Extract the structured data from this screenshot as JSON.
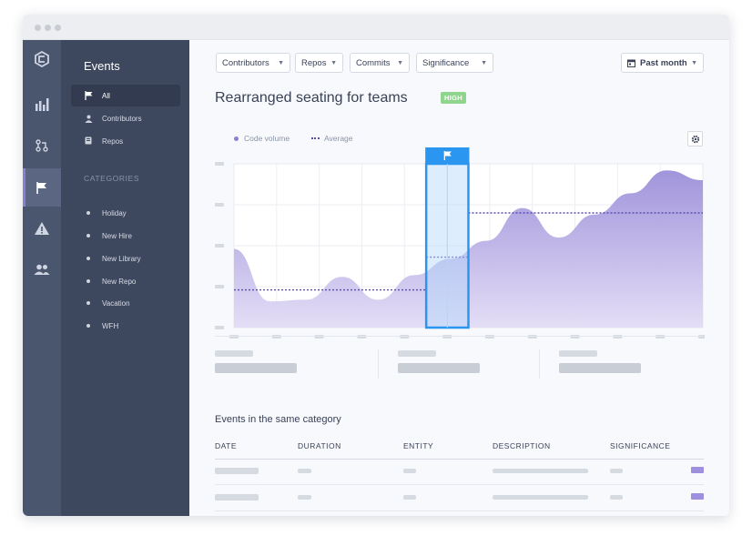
{
  "sidebar": {
    "title": "Events",
    "items": [
      {
        "label": "All",
        "icon": "flag-icon",
        "active": true
      },
      {
        "label": "Contributors",
        "icon": "user-icon"
      },
      {
        "label": "Repos",
        "icon": "repo-icon"
      }
    ],
    "categories_heading": "CATEGORIES",
    "categories": [
      "Holiday",
      "New Hire",
      "New Library",
      "New Repo",
      "Vacation",
      "WFH"
    ]
  },
  "rail": {
    "icons": [
      "logo-icon",
      "bar-chart-icon",
      "pull-request-icon",
      "flag-icon",
      "warning-icon",
      "team-icon"
    ],
    "active": "flag-icon"
  },
  "filters": [
    {
      "label": "Contributors"
    },
    {
      "label": "Repos"
    },
    {
      "label": "Commits"
    },
    {
      "label": "Significance"
    }
  ],
  "date_range": {
    "label": "Past month",
    "icon": "calendar-icon"
  },
  "event": {
    "title": "Rearranged seating for teams",
    "badge": "HIGH"
  },
  "legend": {
    "code_volume": "Code volume",
    "average": "Average"
  },
  "colors": {
    "accent": "#8b7fd4",
    "area_top": "#9c8fd9",
    "area_bottom": "#e2dcf6",
    "highlight": "#2b96ef",
    "badge": "#8fd58e",
    "sidebar": "#3d475d",
    "rail": "#4a556e"
  },
  "chart_data": {
    "type": "area",
    "series": [
      {
        "values": [
          48,
          16,
          17,
          31,
          17,
          32,
          42,
          53,
          73,
          55,
          69,
          82,
          96,
          90
        ]
      }
    ],
    "average": [
      {
        "from": 0,
        "to": 0.41,
        "value": 23
      },
      {
        "from": 0.41,
        "to": 0.5,
        "value": 43
      },
      {
        "from": 0.5,
        "to": 1,
        "value": 70
      }
    ],
    "highlight": {
      "from": 0.41,
      "to": 0.5
    },
    "ylim": [
      0,
      100
    ],
    "grid": true
  },
  "section": {
    "title": "Events in the same category"
  },
  "table": {
    "headers": [
      "DATE",
      "DURATION",
      "ENTITY",
      "DESCRIPTION",
      "SIGNIFICANCE"
    ],
    "rows": 3
  }
}
